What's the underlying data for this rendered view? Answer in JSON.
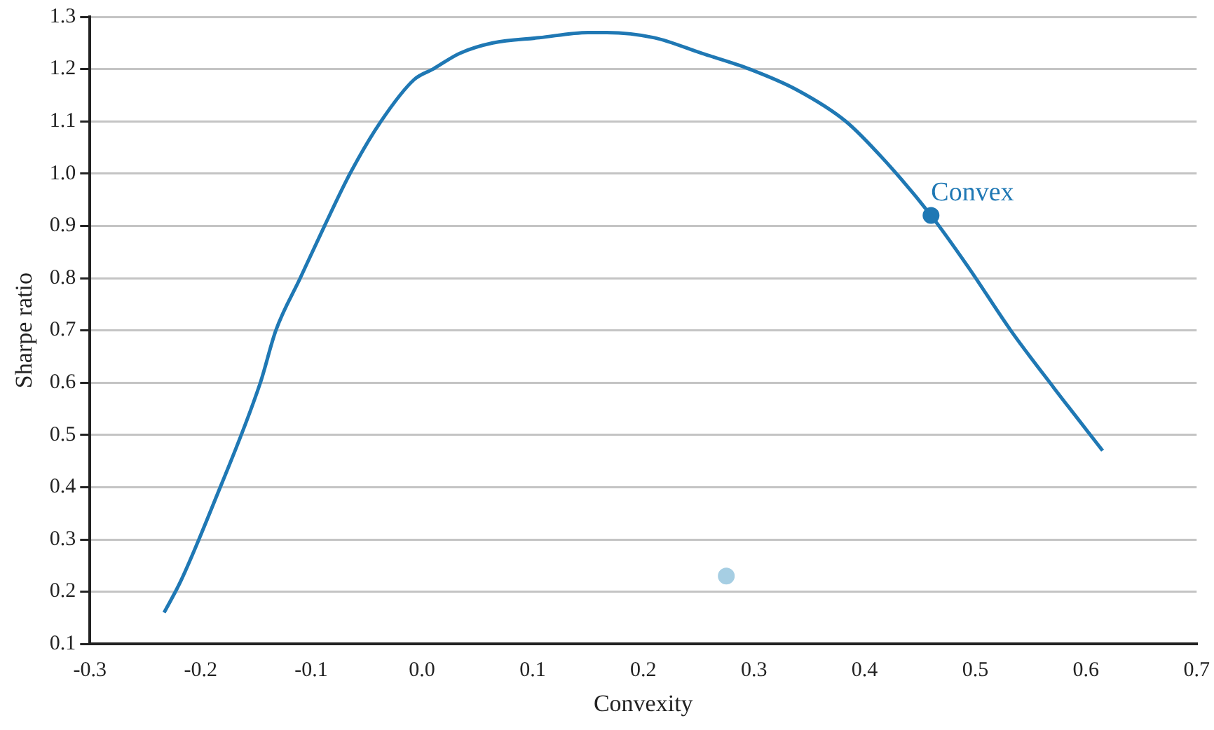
{
  "chart_data": {
    "type": "line",
    "xlabel": "Convexity",
    "ylabel": "Sharpe ratio",
    "xlim": [
      -0.3,
      0.7
    ],
    "xticks": [
      -0.3,
      -0.2,
      -0.1,
      {
        "value": 0,
        "label": "0.0"
      },
      0.1,
      0.2,
      0.3,
      0.4,
      0.5,
      0.6,
      0.7
    ],
    "ylim": [
      0.1,
      1.3
    ],
    "yticks": [
      0.1,
      0.2,
      0.3,
      0.4,
      0.5,
      0.6,
      0.7,
      0.8,
      0.9,
      {
        "value": 1,
        "label": "1.0"
      },
      1.1,
      1.2,
      1.3
    ],
    "grid": "y",
    "legend": false,
    "line_style": "solid",
    "series": [
      {
        "type": "line",
        "marker": "none",
        "color": "#1f78b4",
        "x": [
          -0.233,
          -0.218,
          -0.188,
          -0.146,
          -0.132,
          -0.11,
          -0.088,
          -0.065,
          -0.037,
          -0.007,
          0.01,
          0.034,
          0.064,
          0.106,
          0.15,
          0.167,
          0.21,
          0.253,
          0.296,
          0.339,
          0.383,
          0.416,
          0.46,
          0.494,
          0.532,
          0.571,
          0.615
        ],
        "values": [
          0.16,
          0.22,
          0.37,
          0.6,
          0.7,
          0.8,
          0.9,
          1.0,
          1.1,
          1.18,
          1.2,
          1.23,
          1.25,
          1.26,
          1.27,
          1.27,
          1.26,
          1.23,
          1.2,
          1.16,
          1.1,
          1.03,
          0.92,
          0.82,
          0.7,
          0.59,
          0.47
        ]
      },
      {
        "type": "scatter",
        "marker": "circle",
        "name": "Convex",
        "color": "#1f78b4",
        "x": [
          0.46
        ],
        "values": [
          0.92
        ]
      },
      {
        "type": "scatter",
        "marker": "circle",
        "color": "#a6cee3",
        "x": [
          0.275
        ],
        "values": [
          0.23
        ]
      }
    ]
  }
}
